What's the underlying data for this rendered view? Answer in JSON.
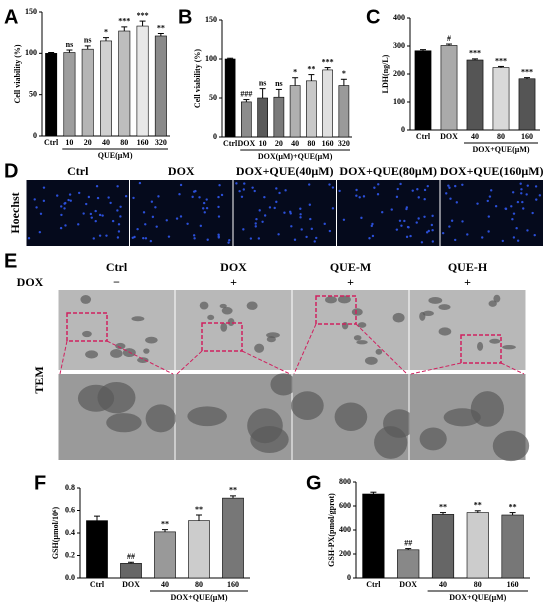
{
  "panel_letters": [
    "A",
    "B",
    "C",
    "D",
    "E",
    "F",
    "G"
  ],
  "chart_data": [
    {
      "type": "bar",
      "ylabel": "Cell viability (%)",
      "xlabel": "QUE(μM)",
      "categories": [
        "Ctrl",
        "10",
        "20",
        "40",
        "80",
        "160",
        "320"
      ],
      "values": [
        100,
        101,
        105,
        115,
        127,
        133,
        121
      ],
      "errors": [
        1,
        3,
        4,
        4,
        5,
        6,
        3
      ],
      "annotations": [
        null,
        "ns",
        "ns",
        "*",
        "***",
        "***",
        "**"
      ],
      "colors": [
        "#000000",
        "#9e9e9e",
        "#b5b5b5",
        "#d0d0d0",
        "#bdbdbd",
        "#e8e8e8",
        "#8a8a8a"
      ],
      "ylim": [
        0,
        150
      ],
      "yticks": [
        0,
        50,
        100,
        150
      ]
    },
    {
      "type": "bar",
      "ylabel": "Cell viability (%)",
      "xlabel": "DOX(μM)+QUE(μM)",
      "categories": [
        "Ctrl",
        "DOX",
        "10",
        "20",
        "40",
        "80",
        "160",
        "320"
      ],
      "values": [
        100,
        45,
        50,
        51,
        66,
        72,
        86,
        66
      ],
      "errors": [
        1,
        3,
        12,
        10,
        10,
        8,
        3,
        8
      ],
      "annotations": [
        null,
        "###",
        "ns",
        "ns",
        "*",
        "**",
        "***",
        "*"
      ],
      "colors": [
        "#000000",
        "#8c8c8c",
        "#5a5a5a",
        "#7a7a7a",
        "#b0b0b0",
        "#c8c8c8",
        "#e0e0e0",
        "#9a9a9a"
      ],
      "ylim": [
        0,
        150
      ],
      "yticks": [
        0,
        50,
        100,
        150
      ]
    },
    {
      "type": "bar",
      "ylabel": "LDH(ng/L)",
      "xlabel": "DOX+QUE(μM)",
      "categories": [
        "Ctrl",
        "DOX",
        "40",
        "80",
        "160"
      ],
      "values": [
        283,
        302,
        250,
        223,
        183
      ],
      "errors": [
        4,
        5,
        4,
        4,
        4
      ],
      "annotations": [
        null,
        "#",
        "***",
        "***",
        "***"
      ],
      "colors": [
        "#000000",
        "#aaaaaa",
        "#555555",
        "#d9d9d9",
        "#555555"
      ],
      "ylim": [
        0,
        400
      ],
      "yticks": [
        0,
        100,
        200,
        300,
        400
      ]
    },
    {
      "type": "bar",
      "ylabel": "GSH(μmol/10⁶)",
      "xlabel": "DOX+QUE(μM)",
      "categories": [
        "Ctrl",
        "DOX",
        "40",
        "80",
        "160"
      ],
      "values": [
        0.51,
        0.13,
        0.41,
        0.51,
        0.71
      ],
      "errors": [
        0.04,
        0.01,
        0.02,
        0.05,
        0.02
      ],
      "annotations": [
        null,
        "##",
        "**",
        "**",
        "**"
      ],
      "colors": [
        "#000000",
        "#666666",
        "#999999",
        "#cccccc",
        "#777777"
      ],
      "ylim": [
        0,
        0.8
      ],
      "yticks": [
        {
          "value": 0,
          "label": "0.0"
        },
        0.2,
        0.4,
        0.6,
        0.8
      ]
    },
    {
      "type": "bar",
      "ylabel": "GSH-PX(pmol/gprot)",
      "xlabel": "DOX+QUE(μM)",
      "categories": [
        "Ctrl",
        "DOX",
        "40",
        "80",
        "160"
      ],
      "values": [
        700,
        235,
        530,
        545,
        525
      ],
      "errors": [
        15,
        10,
        15,
        15,
        20
      ],
      "annotations": [
        null,
        "##",
        "**",
        "**",
        "**"
      ],
      "colors": [
        "#000000",
        "#888888",
        "#666666",
        "#cccccc",
        "#777777"
      ],
      "ylim": [
        0,
        800
      ],
      "yticks": [
        0,
        200,
        400,
        600,
        800
      ]
    }
  ],
  "hoechst": {
    "stain": "Hoechst",
    "columns": [
      "Ctrl",
      "DOX",
      "DOX+QUE(40μM)",
      "DOX+QUE(80μM)",
      "DOX+QUE(160μM)"
    ]
  },
  "tem": {
    "method": "TEM",
    "row_label": "DOX",
    "columns": [
      "Ctrl",
      "DOX",
      "QUE-M",
      "QUE-H"
    ],
    "signs": [
      "−",
      "+",
      "+",
      "+"
    ]
  }
}
